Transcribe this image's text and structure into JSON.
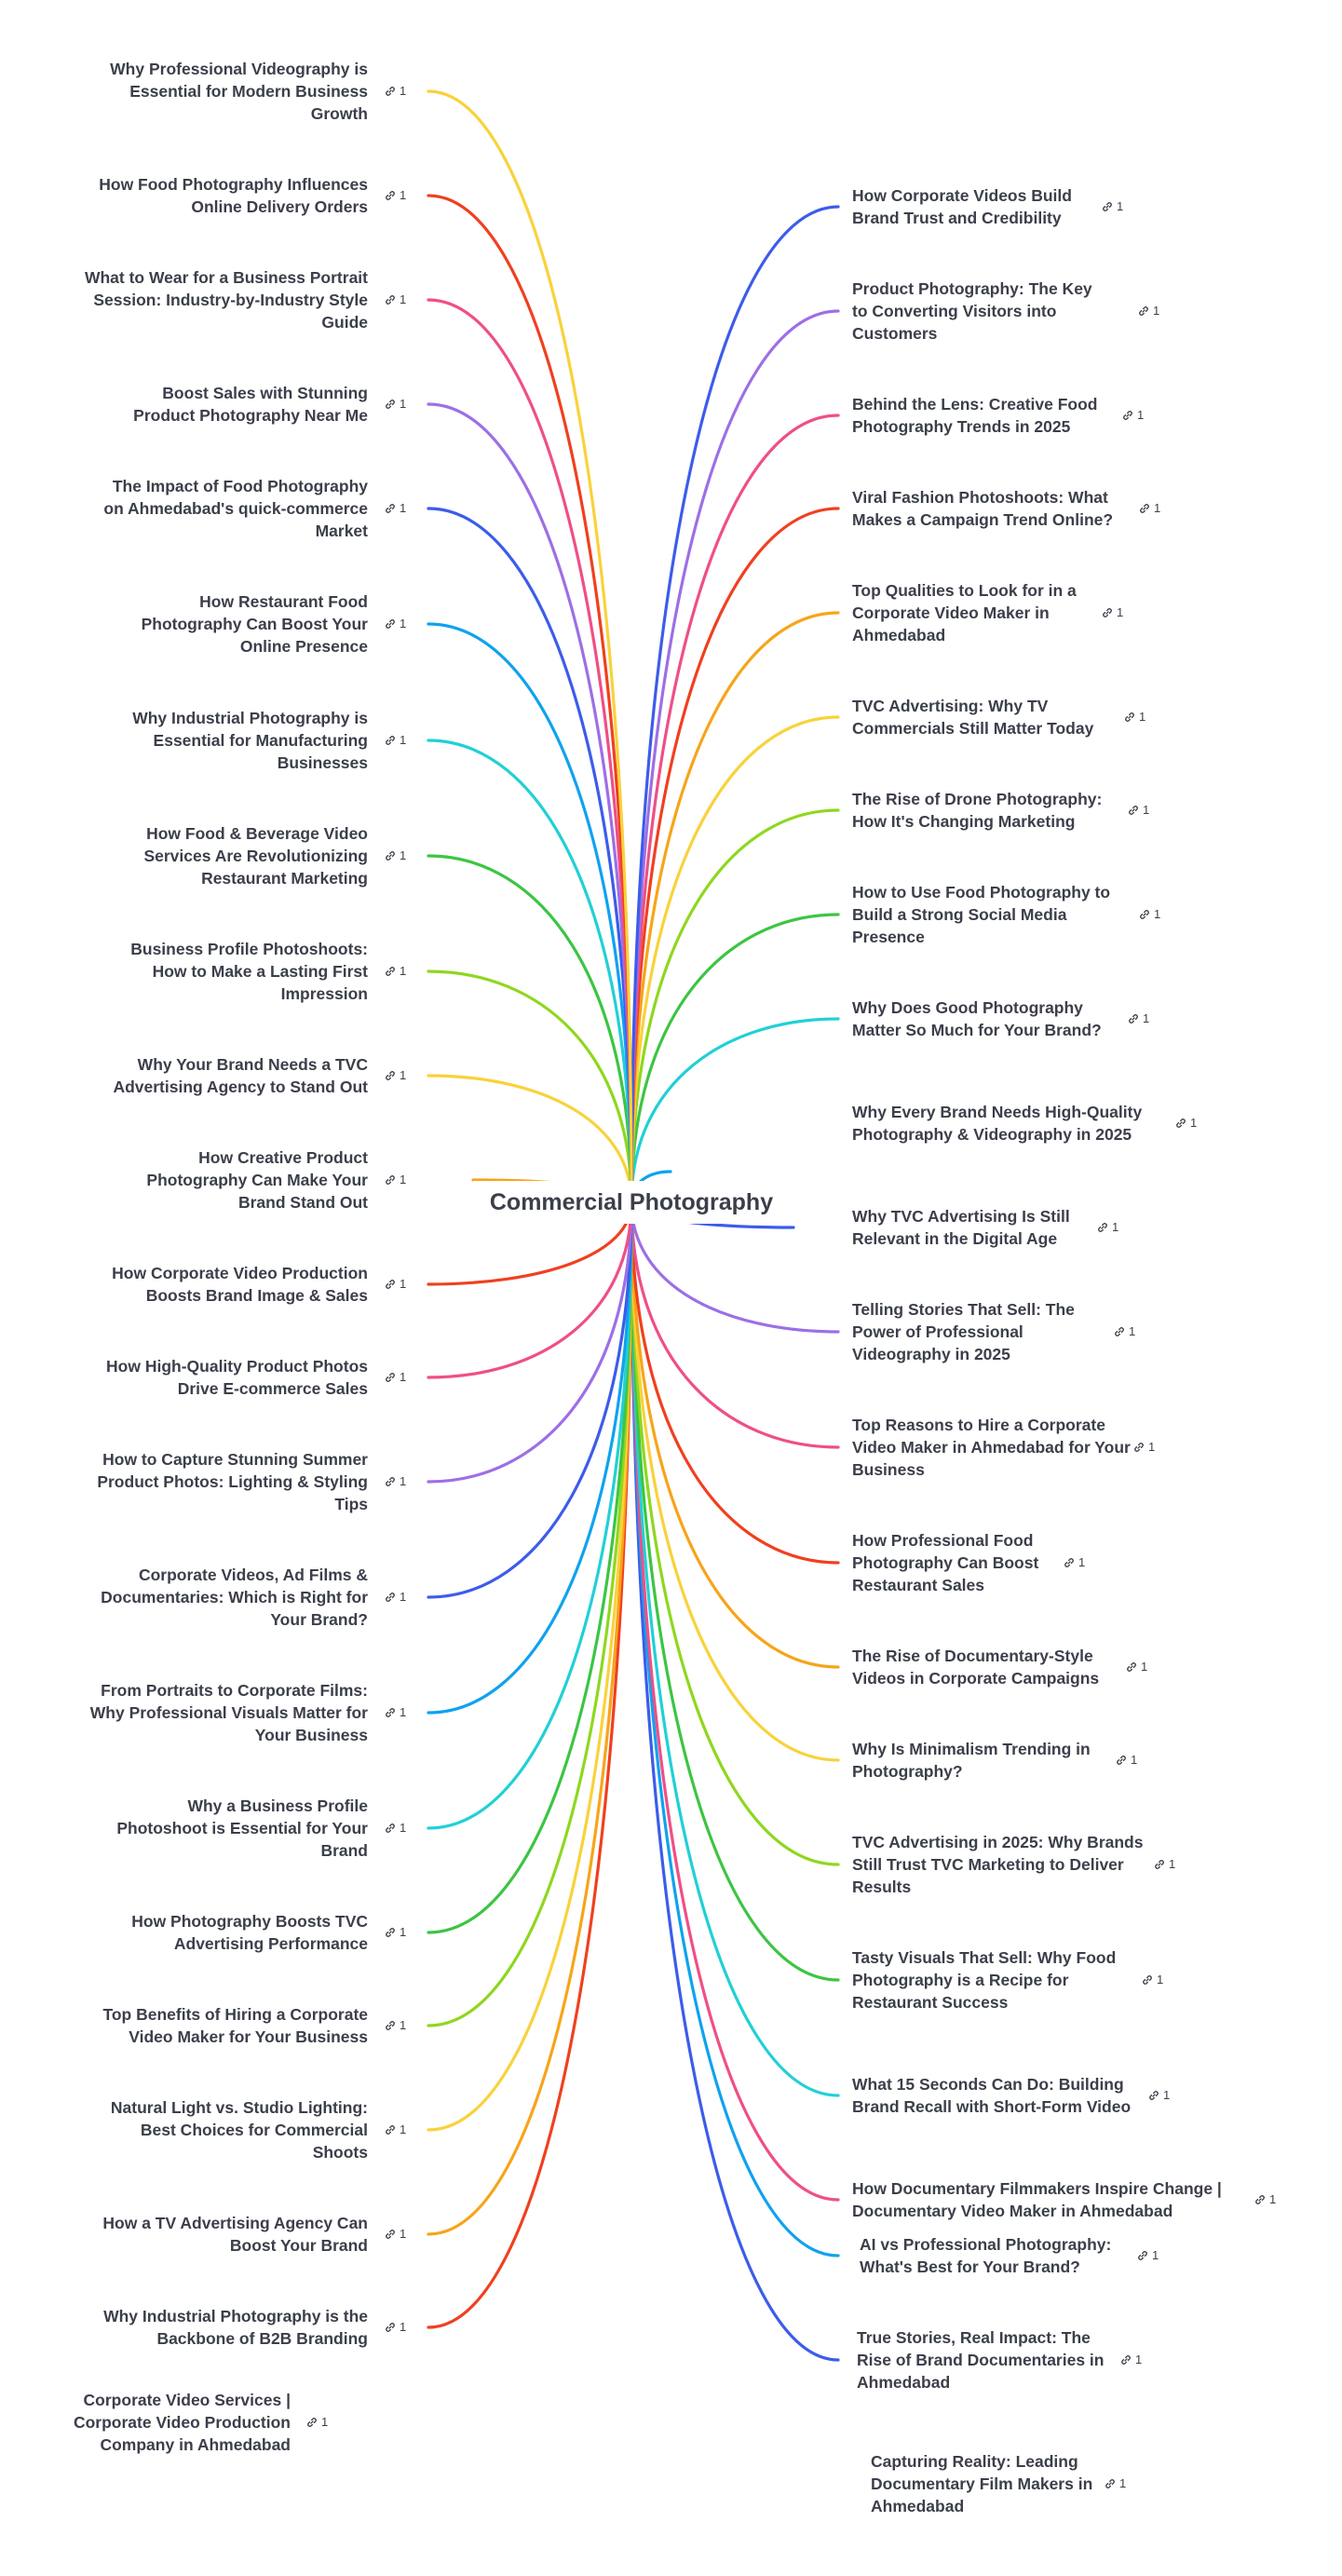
{
  "root": {
    "label": "Commercial Photography"
  },
  "colors": [
    "#f9d23b",
    "#f0401f",
    "#ef4f86",
    "#9d6fe5",
    "#3c5cea",
    "#0fa2ef",
    "#21d0d6",
    "#3cc543",
    "#8fd71f",
    "#f9d23b",
    "#f7a41a",
    "#f0401f",
    "#ef4f86",
    "#9d6fe5",
    "#3c5cea",
    "#0fa2ef",
    "#21d0d6",
    "#3cc543",
    "#8fd71f",
    "#f9d23b",
    "#f7a41a",
    "#f0401f"
  ],
  "left_nodes": [
    {
      "label": "Why Professional Videography is Essential for Modern Business Growth",
      "links": "1",
      "color": "#f9d23b"
    },
    {
      "label": "How Food Photography Influences Online Delivery Orders",
      "links": "1",
      "color": "#f0401f"
    },
    {
      "label": "What to Wear for a Business Portrait Session: Industry-by-Industry Style Guide",
      "links": "1",
      "color": "#ef4f86"
    },
    {
      "label": "Boost Sales with Stunning Product Photography Near Me",
      "links": "1",
      "color": "#9d6fe5"
    },
    {
      "label": "The Impact of Food Photography on Ahmedabad's quick-commerce Market",
      "links": "1",
      "color": "#3c5cea"
    },
    {
      "label": "How Restaurant Food Photography Can Boost Your Online Presence",
      "links": "1",
      "color": "#0fa2ef"
    },
    {
      "label": "Why Industrial Photography is Essential for Manufacturing Businesses",
      "links": "1",
      "color": "#21d0d6"
    },
    {
      "label": "How Food & Beverage Video Services Are Revolutionizing Restaurant Marketing",
      "links": "1",
      "color": "#3cc543"
    },
    {
      "label": "Business Profile Photoshoots: How to Make a Lasting First Impression",
      "links": "1",
      "color": "#8fd71f"
    },
    {
      "label": "Why Your Brand Needs a TVC Advertising Agency to Stand Out",
      "links": "1",
      "color": "#f9d23b"
    },
    {
      "label": "How Creative Product Photography Can Make Your Brand Stand Out",
      "links": "1",
      "color": "#f7a41a"
    },
    {
      "label": "How Corporate Video Production Boosts Brand Image & Sales",
      "links": "1",
      "color": "#f0401f"
    },
    {
      "label": "How High-Quality Product Photos Drive E-commerce Sales",
      "links": "1",
      "color": "#ef4f86"
    },
    {
      "label": "How to Capture Stunning Summer Product Photos: Lighting & Styling Tips",
      "links": "1",
      "color": "#9d6fe5"
    },
    {
      "label": "Corporate Videos, Ad Films & Documentaries: Which is Right for Your Brand?",
      "links": "1",
      "color": "#3c5cea"
    },
    {
      "label": "From Portraits to Corporate Films: Why Professional Visuals Matter for Your Business",
      "links": "1",
      "color": "#0fa2ef"
    },
    {
      "label": "Why a Business Profile Photoshoot is Essential for Your Brand",
      "links": "1",
      "color": "#21d0d6"
    },
    {
      "label": "How Photography Boosts TVC Advertising Performance",
      "links": "1",
      "color": "#3cc543"
    },
    {
      "label": "Top Benefits of Hiring a Corporate Video Maker for Your Business",
      "links": "1",
      "color": "#8fd71f"
    },
    {
      "label": "Natural Light vs. Studio Lighting: Best Choices for Commercial Shoots",
      "links": "1",
      "color": "#f9d23b"
    },
    {
      "label": "How a TV Advertising Agency Can Boost Your Brand",
      "links": "1",
      "color": "#f7a41a"
    },
    {
      "label": "Why Industrial Photography is the Backbone of B2B Branding",
      "links": "1",
      "color": "#f0401f"
    },
    {
      "label": "Corporate Video Services | Corporate Video Production Company in Ahmedabad",
      "links": "1",
      "color": ""
    }
  ],
  "right_nodes": [
    {
      "label": "How Corporate Videos Build Brand Trust and Credibility",
      "links": "1",
      "color": "#3c5cea"
    },
    {
      "label": "Product Photography: The Key to Converting Visitors into Customers",
      "links": "1",
      "color": "#9d6fe5"
    },
    {
      "label": "Behind the Lens: Creative Food Photography Trends in 2025",
      "links": "1",
      "color": "#ef4f86"
    },
    {
      "label": "Viral Fashion Photoshoots: What Makes a Campaign Trend Online?",
      "links": "1",
      "color": "#f0401f"
    },
    {
      "label": "Top Qualities to Look for in a Corporate Video Maker in Ahmedabad",
      "links": "1",
      "color": "#f7a41a"
    },
    {
      "label": "TVC Advertising: Why TV Commercials Still Matter Today",
      "links": "1",
      "color": "#f9d23b"
    },
    {
      "label": "The Rise of Drone Photography: How It's Changing Marketing",
      "links": "1",
      "color": "#8fd71f"
    },
    {
      "label": "How to Use Food Photography to Build a Strong Social Media Presence",
      "links": "1",
      "color": "#3cc543"
    },
    {
      "label": "Why Does Good Photography Matter So Much for Your Brand?",
      "links": "1",
      "color": "#21d0d6"
    },
    {
      "label": "Why Every Brand Needs High-Quality Photography & Videography in 2025",
      "links": "1",
      "color": "#0fa2ef"
    },
    {
      "label": "Why TVC Advertising Is Still Relevant in the Digital Age",
      "links": "1",
      "color": "#3c5cea"
    },
    {
      "label": "Telling Stories That Sell: The Power of Professional Videography in 2025",
      "links": "1",
      "color": "#9d6fe5"
    },
    {
      "label": "Top Reasons to Hire a Corporate Video Maker in Ahmedabad for Your Business",
      "links": "1",
      "color": "#ef4f86"
    },
    {
      "label": "How Professional Food Photography Can Boost Restaurant Sales",
      "links": "1",
      "color": "#f0401f"
    },
    {
      "label": "The Rise of Documentary-Style Videos in Corporate Campaigns",
      "links": "1",
      "color": "#f7a41a"
    },
    {
      "label": "Why Is Minimalism Trending in Photography?",
      "links": "1",
      "color": "#f9d23b"
    },
    {
      "label": "TVC Advertising in 2025: Why Brands Still Trust TVC Marketing to Deliver Results",
      "links": "1",
      "color": "#8fd71f"
    },
    {
      "label": "Tasty Visuals That Sell: Why Food Photography is a Recipe for Restaurant Success",
      "links": "1",
      "color": "#3cc543"
    },
    {
      "label": "What 15 Seconds Can Do: Building Brand Recall with Short-Form Video",
      "links": "1",
      "color": "#21d0d6"
    },
    {
      "label": "How Documentary Filmmakers Inspire Change | Documentary Video Maker in Ahmedabad",
      "links": "1",
      "color": "#ef4f86"
    },
    {
      "label": "AI vs Professional Photography: What's Best for Your Brand?",
      "links": "1",
      "color": "#0fa2ef"
    },
    {
      "label": "True Stories, Real Impact: The Rise of Brand Documentaries in Ahmedabad",
      "links": "1",
      "color": "#3c5cea"
    },
    {
      "label": "Capturing Reality: Leading Documentary Film Makers in Ahmedabad",
      "links": "1",
      "color": ""
    }
  ]
}
